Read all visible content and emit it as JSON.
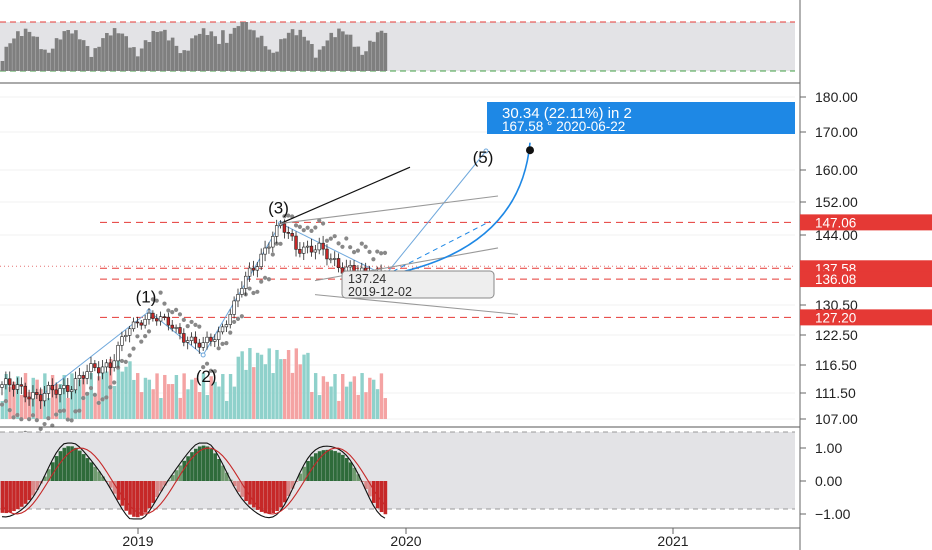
{
  "chart_data": {
    "type": "candlestick",
    "x_ticks": [
      "2019",
      "2020",
      "2021"
    ],
    "y_ticks": [
      {
        "value": 180,
        "label": "180.00"
      },
      {
        "value": 170,
        "label": "170.00"
      },
      {
        "value": 160,
        "label": "160.00"
      },
      {
        "value": 152,
        "label": "152.00"
      },
      {
        "value": 144,
        "label": "144.00"
      },
      {
        "value": 130.5,
        "label": "130.50"
      },
      {
        "value": 122.5,
        "label": "122.50"
      },
      {
        "value": 116.5,
        "label": "116.50"
      },
      {
        "value": 111.5,
        "label": "111.50"
      },
      {
        "value": 107,
        "label": "107.00"
      }
    ],
    "osc_ticks": [
      {
        "value": 1,
        "label": "1.00"
      },
      {
        "value": 0,
        "label": "0.00"
      },
      {
        "value": -1,
        "label": "−1.00"
      }
    ],
    "price_levels": [
      {
        "value": 147.06,
        "label": "147.06",
        "color": "#e53935"
      },
      {
        "value": 137.58,
        "label": "137.58",
        "color": "#e53935"
      },
      {
        "value": 136.08,
        "label": "136.08",
        "color": "#e53935"
      },
      {
        "value": 127.2,
        "label": "127.20",
        "color": "#e53935"
      }
    ],
    "wave_labels": [
      "(1)",
      "(2)",
      "(3)",
      "(5)"
    ],
    "info_box": {
      "value": "137.24",
      "date": "2019-12-02"
    },
    "projection": {
      "line1": "30.34 (22.11%)   in 2",
      "line2": "167.58   °    2020-06-22",
      "target": 167.58,
      "color": "#1e88e5"
    },
    "colors": {
      "up": "#26a69a",
      "down": "#ef5350",
      "vol_up": "#8fd1cb",
      "vol_down": "#f4a3a3",
      "level": "#e53935",
      "osc_pos": "#2e6b3a",
      "osc_neg": "#c62828",
      "blue": "#1e88e5"
    }
  }
}
